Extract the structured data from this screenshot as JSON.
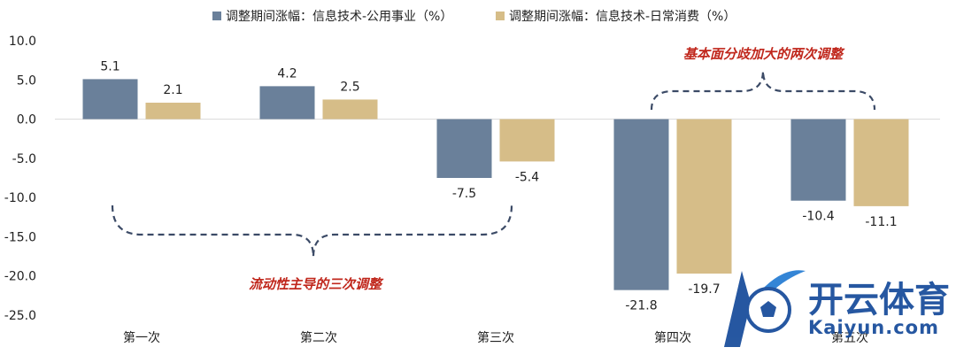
{
  "chart_data": {
    "type": "bar",
    "categories": [
      "第一次",
      "第二次",
      "第三次",
      "第四次",
      "第五次"
    ],
    "series": [
      {
        "name": "调整期间涨幅：信息技术-公用事业（%）",
        "color": "#6a809a",
        "values": [
          5.1,
          4.2,
          -7.5,
          -21.8,
          -10.4
        ]
      },
      {
        "name": "调整期间涨幅：信息技术-日常消费（%）",
        "color": "#d6bd88",
        "values": [
          2.1,
          2.5,
          -5.4,
          -19.7,
          -11.1
        ]
      }
    ],
    "ylim": [
      -25,
      10
    ],
    "yticks": [
      "10.0",
      "5.0",
      "0.0",
      "-5.0",
      "-10.0",
      "-15.0",
      "-20.0",
      "-25.0"
    ],
    "legend_position": "top",
    "annotations": {
      "liquidity": "流动性主导的三次调整",
      "fundamental": "基本面分歧加大的两次调整"
    }
  },
  "watermark": {
    "cn": "开云体育",
    "en": "Kaiyun.com"
  }
}
